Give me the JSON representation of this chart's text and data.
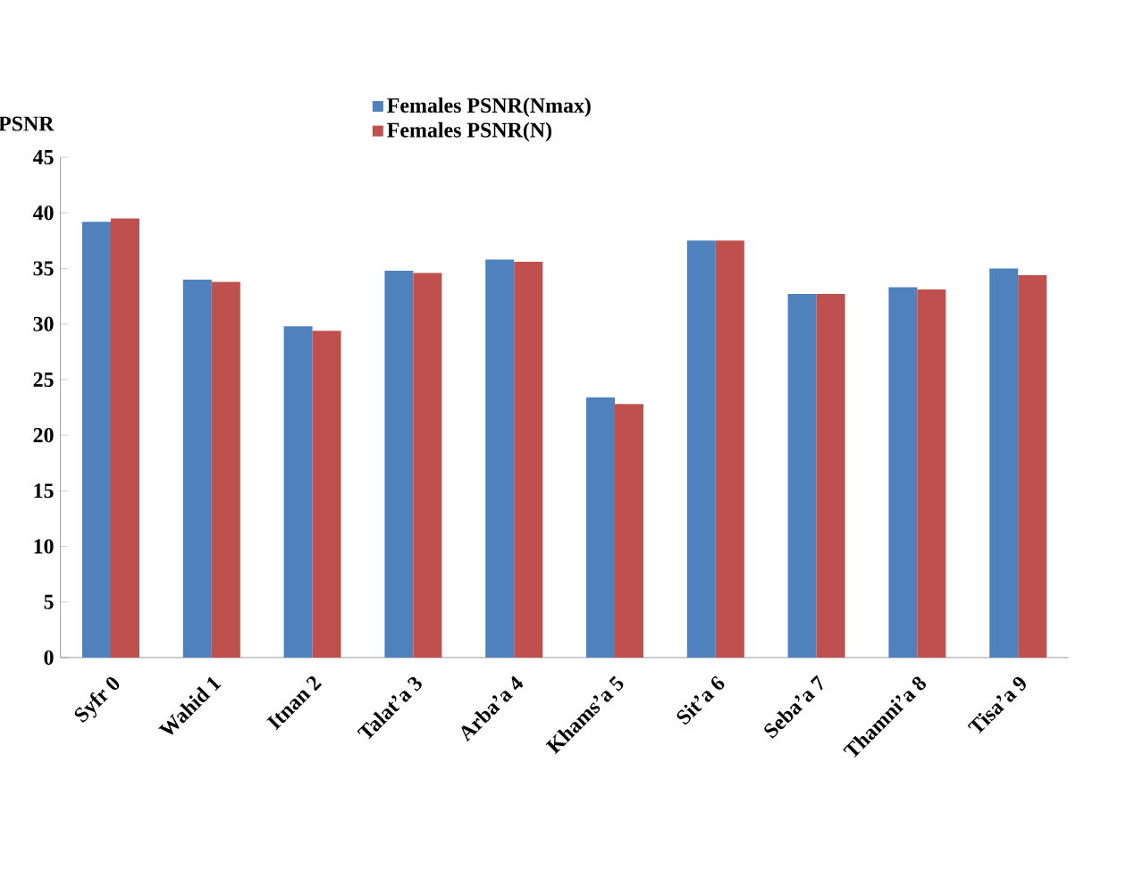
{
  "chart_data": {
    "type": "bar",
    "ylabel": "PSNR",
    "categories": [
      "Syfr 0",
      "Wahid 1",
      "Itnan 2",
      "Talat’a 3",
      "Arba’a 4",
      "Khams’a 5",
      "Sit’a 6",
      "Seba’a 7",
      "Thamni’a 8",
      "Tisa’a 9"
    ],
    "series": [
      {
        "name": "Females PSNR(Nmax)",
        "color": "#4f81bd",
        "values": [
          39.2,
          34.0,
          29.8,
          34.8,
          35.8,
          23.4,
          37.5,
          32.7,
          33.3,
          35.0
        ]
      },
      {
        "name": "Females PSNR(N)",
        "color": "#c0504d",
        "values": [
          39.5,
          33.8,
          29.4,
          34.6,
          35.6,
          22.8,
          37.5,
          32.7,
          33.1,
          34.4
        ]
      }
    ],
    "ylim": [
      0,
      45
    ],
    "yticks": [
      0,
      5,
      10,
      15,
      20,
      25,
      30,
      35,
      40,
      45
    ],
    "grid": false,
    "legend": "top"
  }
}
